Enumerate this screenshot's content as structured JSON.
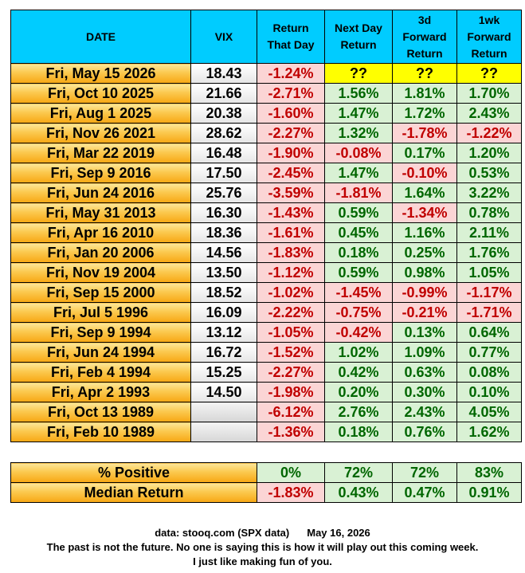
{
  "chart_data": {
    "type": "table",
    "columns": [
      "DATE",
      "VIX",
      "Return That Day",
      "Next Day Return",
      "3d Forward Return",
      "1wk Forward Return"
    ],
    "rows": [
      {
        "date": "Fri, May 15 2026",
        "vix": "18.43",
        "ret": "-1.24%",
        "next": "??",
        "d3": "??",
        "wk": "??"
      },
      {
        "date": "Fri, Oct 10 2025",
        "vix": "21.66",
        "ret": "-2.71%",
        "next": "1.56%",
        "d3": "1.81%",
        "wk": "1.70%"
      },
      {
        "date": "Fri, Aug 1 2025",
        "vix": "20.38",
        "ret": "-1.60%",
        "next": "1.47%",
        "d3": "1.72%",
        "wk": "2.43%"
      },
      {
        "date": "Fri, Nov 26 2021",
        "vix": "28.62",
        "ret": "-2.27%",
        "next": "1.32%",
        "d3": "-1.78%",
        "wk": "-1.22%"
      },
      {
        "date": "Fri, Mar 22 2019",
        "vix": "16.48",
        "ret": "-1.90%",
        "next": "-0.08%",
        "d3": "0.17%",
        "wk": "1.20%"
      },
      {
        "date": "Fri, Sep 9 2016",
        "vix": "17.50",
        "ret": "-2.45%",
        "next": "1.47%",
        "d3": "-0.10%",
        "wk": "0.53%"
      },
      {
        "date": "Fri, Jun 24 2016",
        "vix": "25.76",
        "ret": "-3.59%",
        "next": "-1.81%",
        "d3": "1.64%",
        "wk": "3.22%"
      },
      {
        "date": "Fri, May 31 2013",
        "vix": "16.30",
        "ret": "-1.43%",
        "next": "0.59%",
        "d3": "-1.34%",
        "wk": "0.78%"
      },
      {
        "date": "Fri, Apr 16 2010",
        "vix": "18.36",
        "ret": "-1.61%",
        "next": "0.45%",
        "d3": "1.16%",
        "wk": "2.11%"
      },
      {
        "date": "Fri, Jan 20 2006",
        "vix": "14.56",
        "ret": "-1.83%",
        "next": "0.18%",
        "d3": "0.25%",
        "wk": "1.76%"
      },
      {
        "date": "Fri, Nov 19 2004",
        "vix": "13.50",
        "ret": "-1.12%",
        "next": "0.59%",
        "d3": "0.98%",
        "wk": "1.05%"
      },
      {
        "date": "Fri, Sep 15 2000",
        "vix": "18.52",
        "ret": "-1.02%",
        "next": "-1.45%",
        "d3": "-0.99%",
        "wk": "-1.17%"
      },
      {
        "date": "Fri, Jul 5 1996",
        "vix": "16.09",
        "ret": "-2.22%",
        "next": "-0.75%",
        "d3": "-0.21%",
        "wk": "-1.71%"
      },
      {
        "date": "Fri, Sep 9 1994",
        "vix": "13.12",
        "ret": "-1.05%",
        "next": "-0.42%",
        "d3": "0.13%",
        "wk": "0.64%"
      },
      {
        "date": "Fri, Jun 24 1994",
        "vix": "16.72",
        "ret": "-1.52%",
        "next": "1.02%",
        "d3": "1.09%",
        "wk": "0.77%"
      },
      {
        "date": "Fri, Feb 4 1994",
        "vix": "15.25",
        "ret": "-2.27%",
        "next": "0.42%",
        "d3": "0.63%",
        "wk": "0.08%"
      },
      {
        "date": "Fri, Apr 2 1993",
        "vix": "14.50",
        "ret": "-1.98%",
        "next": "0.20%",
        "d3": "0.30%",
        "wk": "0.10%"
      },
      {
        "date": "Fri, Oct 13 1989",
        "vix": "",
        "ret": "-6.12%",
        "next": "2.76%",
        "d3": "2.43%",
        "wk": "4.05%"
      },
      {
        "date": "Fri, Feb 10 1989",
        "vix": "",
        "ret": "-1.36%",
        "next": "0.18%",
        "d3": "0.76%",
        "wk": "1.62%"
      }
    ],
    "summary": [
      {
        "label": "% Positive",
        "ret": "0%",
        "next": "72%",
        "d3": "72%",
        "wk": "83%"
      },
      {
        "label": "Median Return",
        "ret": "-1.83%",
        "next": "0.43%",
        "d3": "0.47%",
        "wk": "0.91%"
      }
    ]
  },
  "header": {
    "date": "DATE",
    "vix": "VIX",
    "ret_1": "Return",
    "ret_2": "That Day",
    "next_1": "Next Day",
    "next_2": "Return",
    "d3_1": "3d",
    "d3_2": "Forward",
    "d3_3": "Return",
    "wk_1": "1wk",
    "wk_2": "Forward",
    "wk_3": "Return"
  },
  "footer": {
    "source": "data: stooq.com (SPX data)",
    "date": "May 16, 2026",
    "disclaimer": "The past is not the future. No one is saying this is how it will play out this coming week.",
    "joke": "I just like making fun of you."
  },
  "colors": {
    "header_bg": "#00ccff",
    "date_bg": "#fbc94f",
    "negative_bg": "#fbd5d5",
    "negative_text": "#c00000",
    "positive_bg": "#d9f1d4",
    "positive_text": "#006600",
    "unknown_bg": "#ffff00"
  }
}
